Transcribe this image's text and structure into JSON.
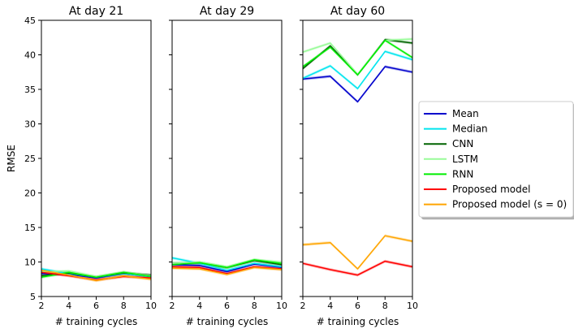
{
  "chart_data": {
    "type": "line",
    "ylabel": "RMSE",
    "xlabel": "# training cycles",
    "ylim": [
      5,
      45
    ],
    "xlim": [
      2,
      10
    ],
    "x_ticks": [
      2,
      4,
      6,
      8,
      10
    ],
    "y_ticks": [
      5,
      10,
      15,
      20,
      25,
      30,
      35,
      40,
      45
    ],
    "grid": false,
    "legend_placement": "right, outside plots",
    "legend": [
      {
        "name": "Mean",
        "color": "#0000cc"
      },
      {
        "name": "Median",
        "color": "#00e5ee"
      },
      {
        "name": "CNN",
        "color": "#006400"
      },
      {
        "name": "LSTM",
        "color": "#98fb98"
      },
      {
        "name": "RNN",
        "color": "#00ee00"
      },
      {
        "name": "Proposed model",
        "color": "#ff0000"
      },
      {
        "name": "Proposed model (s = 0)",
        "color": "#ffa500"
      }
    ],
    "panels": [
      {
        "title": "At day 21",
        "x": [
          2,
          4,
          6,
          8,
          10
        ],
        "series": [
          {
            "name": "Mean",
            "values": [
              8.3,
              8.2,
              7.7,
              8.3,
              7.9
            ]
          },
          {
            "name": "Median",
            "values": [
              9.0,
              8.3,
              7.8,
              8.3,
              7.9
            ]
          },
          {
            "name": "CNN",
            "values": [
              8.0,
              8.4,
              7.8,
              8.4,
              8.1
            ]
          },
          {
            "name": "LSTM",
            "values": [
              8.6,
              8.7,
              7.9,
              8.5,
              8.0
            ]
          },
          {
            "name": "RNN",
            "values": [
              7.8,
              8.5,
              7.8,
              8.5,
              7.9
            ]
          },
          {
            "name": "Proposed model",
            "values": [
              8.5,
              8.0,
              7.4,
              7.9,
              7.7
            ]
          },
          {
            "name": "Proposed model (s = 0)",
            "values": [
              8.8,
              8.1,
              7.3,
              8.0,
              7.5
            ]
          }
        ]
      },
      {
        "title": "At day 29",
        "x": [
          2,
          4,
          6,
          8,
          10
        ],
        "series": [
          {
            "name": "Mean",
            "values": [
              9.6,
              9.5,
              8.6,
              9.7,
              9.2
            ]
          },
          {
            "name": "Median",
            "values": [
              10.6,
              9.8,
              8.8,
              9.8,
              9.3
            ]
          },
          {
            "name": "CNN",
            "values": [
              9.8,
              9.9,
              9.2,
              10.2,
              9.6
            ]
          },
          {
            "name": "LSTM",
            "values": [
              9.8,
              10.0,
              9.3,
              10.3,
              10.0
            ]
          },
          {
            "name": "RNN",
            "values": [
              9.6,
              9.9,
              9.2,
              10.3,
              9.8
            ]
          },
          {
            "name": "Proposed model",
            "values": [
              9.3,
              9.2,
              8.3,
              9.3,
              9.0
            ]
          },
          {
            "name": "Proposed model (s = 0)",
            "values": [
              9.1,
              9.0,
              8.2,
              9.2,
              8.9
            ]
          }
        ]
      },
      {
        "title": "At day 60",
        "x": [
          2,
          4,
          6,
          8,
          10
        ],
        "series": [
          {
            "name": "Mean",
            "values": [
              36.5,
              36.9,
              33.2,
              38.3,
              37.5
            ]
          },
          {
            "name": "Median",
            "values": [
              36.6,
              38.4,
              35.1,
              40.5,
              39.3
            ]
          },
          {
            "name": "CNN",
            "values": [
              38.0,
              41.3,
              37.1,
              42.2,
              41.7
            ]
          },
          {
            "name": "LSTM",
            "values": [
              40.4,
              41.7,
              37.2,
              42.1,
              42.3
            ]
          },
          {
            "name": "RNN",
            "values": [
              38.3,
              41.1,
              37.1,
              42.1,
              39.6
            ]
          },
          {
            "name": "Proposed model",
            "values": [
              9.8,
              8.9,
              8.1,
              10.1,
              9.3
            ]
          },
          {
            "name": "Proposed model (s = 0)",
            "values": [
              12.5,
              12.8,
              9.0,
              13.8,
              13.0
            ]
          }
        ]
      }
    ]
  }
}
